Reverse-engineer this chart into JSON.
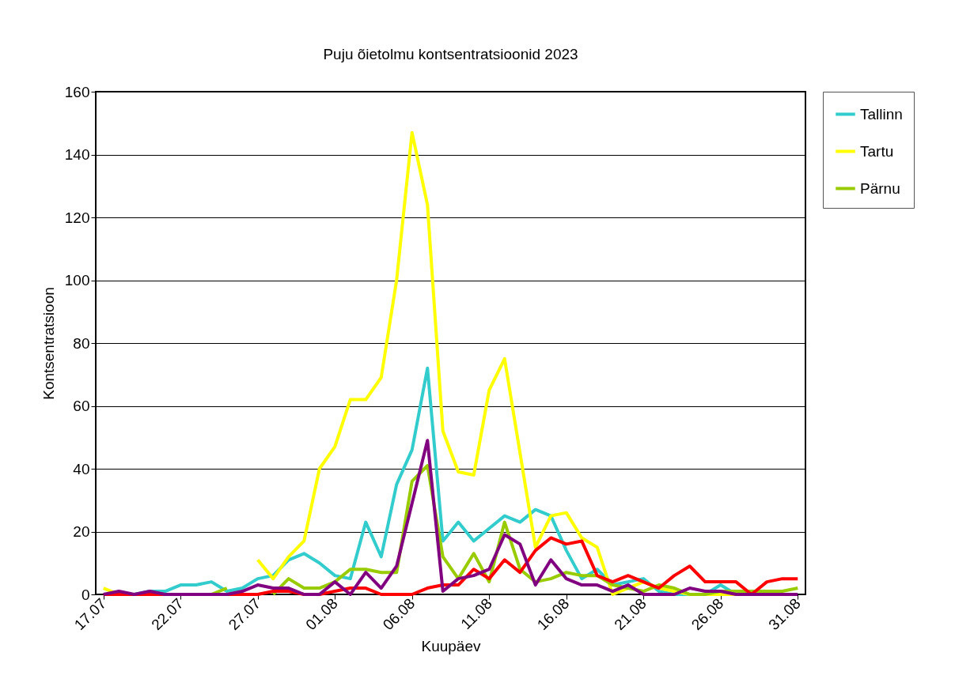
{
  "chart_data": {
    "type": "line",
    "title": "Puju õietolmu kontsentratsioonid 2023",
    "xlabel": "Kuupäev",
    "ylabel": "Kontsentratsioon",
    "categories": [
      "17.07",
      null,
      null,
      null,
      null,
      "22.07",
      null,
      null,
      null,
      null,
      "27.07",
      null,
      null,
      null,
      null,
      "01.08",
      null,
      null,
      null,
      null,
      "06.08",
      null,
      null,
      null,
      null,
      "11.08",
      null,
      null,
      null,
      null,
      "16.08",
      null,
      null,
      null,
      null,
      "21.08",
      null,
      null,
      null,
      null,
      "26.08",
      null,
      null,
      null,
      null,
      "31.08"
    ],
    "series": [
      {
        "name": "Tallinn",
        "color": "#33cccc",
        "values": [
          null,
          null,
          0,
          1,
          1,
          3,
          3,
          4,
          1,
          2,
          5,
          6,
          11,
          13,
          10,
          6,
          5,
          23,
          12,
          35,
          46,
          72,
          17,
          23,
          17,
          21,
          25,
          23,
          27,
          25,
          14,
          5,
          8,
          3,
          4,
          5,
          1,
          0,
          0,
          0,
          3,
          0,
          0,
          null,
          null,
          null
        ]
      },
      {
        "name": "Tartu",
        "color": "#ffff00",
        "values": [
          2,
          0,
          null,
          null,
          null,
          null,
          null,
          null,
          null,
          null,
          11,
          5,
          12,
          17,
          40,
          47,
          62,
          62,
          69,
          100,
          147,
          124,
          52,
          39,
          38,
          65,
          75,
          45,
          15,
          25,
          26,
          18,
          15,
          0,
          2,
          4,
          2,
          1,
          0,
          0,
          0,
          0,
          0,
          null,
          null,
          null
        ]
      },
      {
        "name": "Pärnu",
        "color": "#99cc00",
        "values": [
          null,
          null,
          null,
          null,
          null,
          null,
          0,
          0,
          2,
          null,
          null,
          0,
          5,
          2,
          2,
          4,
          8,
          8,
          7,
          7,
          36,
          41,
          12,
          5,
          13,
          4,
          23,
          8,
          4,
          5,
          7,
          6,
          6,
          3,
          2,
          1,
          3,
          2,
          0,
          0,
          1,
          1,
          1,
          1,
          1,
          2
        ]
      },
      {
        "color": "#ff0000",
        "values": [
          0,
          0,
          0,
          0,
          0,
          0,
          0,
          0,
          0,
          0,
          0,
          1,
          1,
          0,
          0,
          1,
          2,
          2,
          0,
          0,
          0,
          2,
          3,
          3,
          8,
          5,
          11,
          7,
          14,
          18,
          16,
          17,
          6,
          4,
          6,
          4,
          2,
          6,
          9,
          4,
          4,
          4,
          0,
          4,
          5,
          5
        ]
      },
      {
        "color": "#800080",
        "values": [
          0,
          1,
          0,
          1,
          0,
          0,
          0,
          0,
          0,
          1,
          3,
          2,
          2,
          0,
          0,
          4,
          0,
          7,
          2,
          9,
          29,
          49,
          1,
          5,
          6,
          8,
          19,
          16,
          3,
          11,
          5,
          3,
          3,
          1,
          3,
          0,
          0,
          0,
          2,
          1,
          1,
          0,
          0,
          0,
          0,
          0
        ]
      }
    ],
    "ylim": [
      0,
      160
    ],
    "yticks": [
      0,
      20,
      40,
      60,
      80,
      100,
      120,
      140,
      160
    ],
    "grid": "y",
    "legend": "right",
    "line_style": "solid",
    "marker": "none"
  }
}
